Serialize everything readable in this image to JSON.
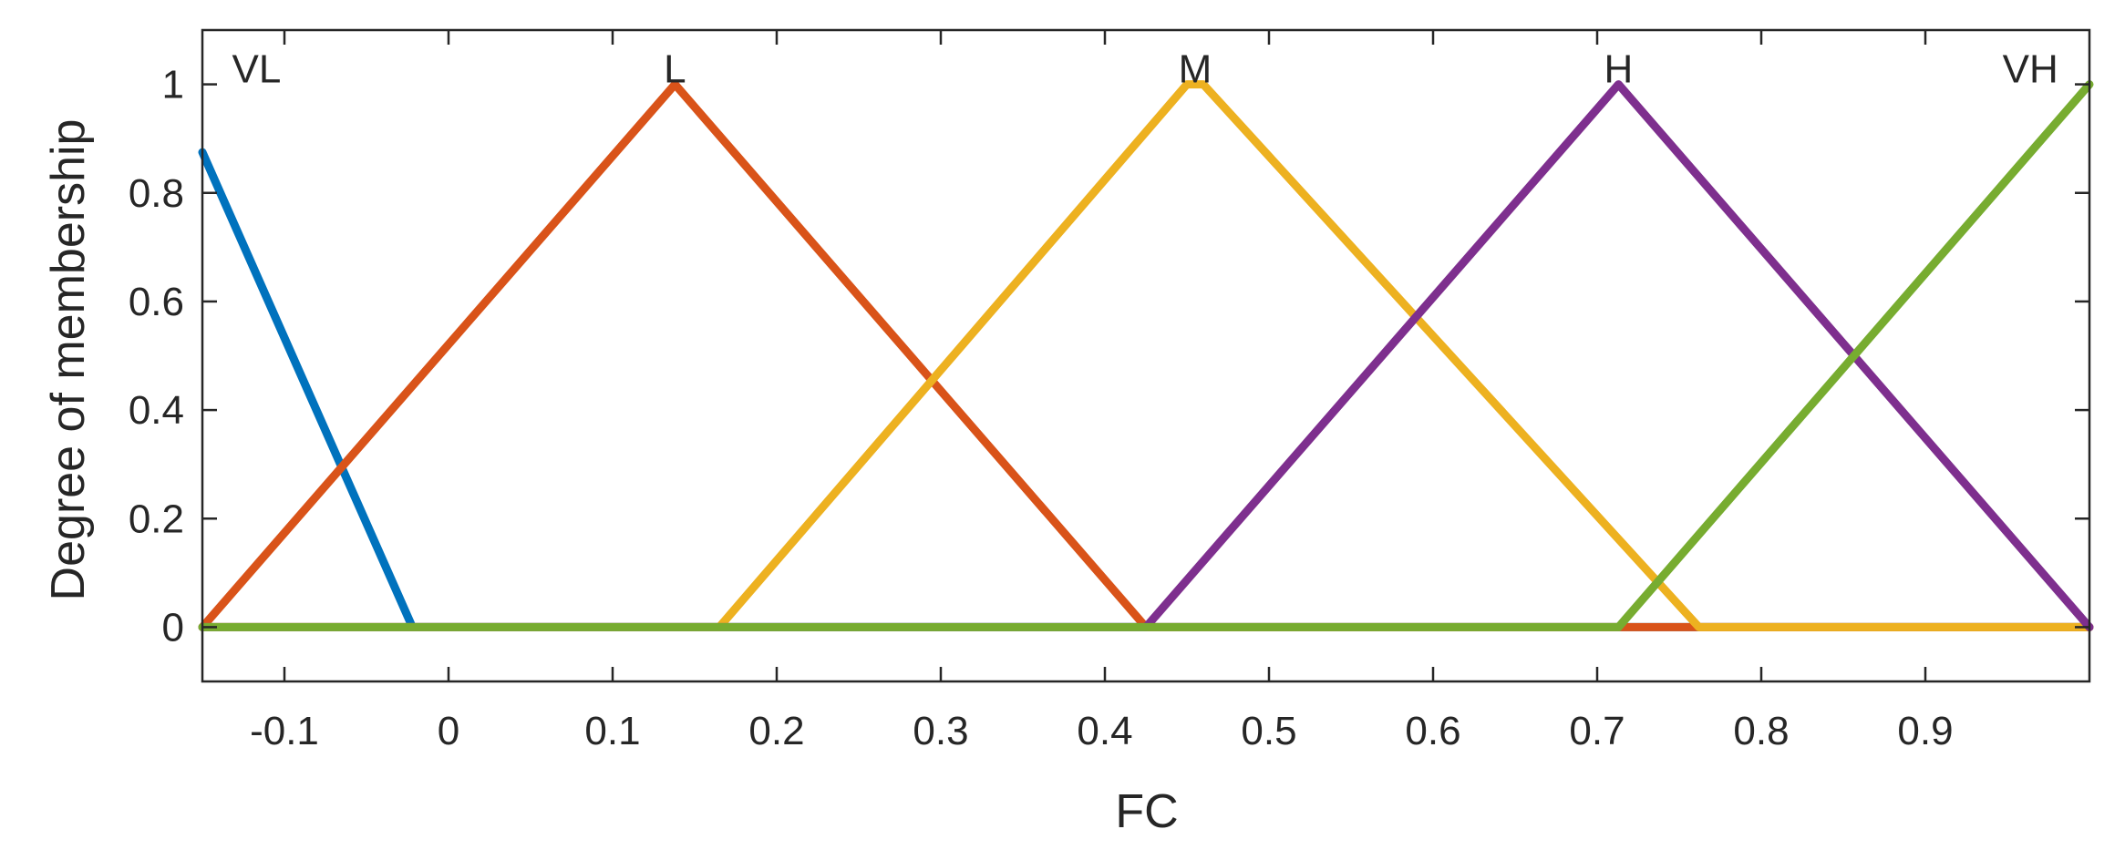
{
  "chart_data": {
    "type": "line",
    "title": "",
    "xlabel": "FC",
    "ylabel": "Degree of membership",
    "xlim": [
      -0.15,
      1.0
    ],
    "ylim": [
      -0.1,
      1.1
    ],
    "xticks": [
      -0.1,
      0,
      0.1,
      0.2,
      0.3,
      0.4,
      0.5,
      0.6,
      0.7,
      0.8,
      0.9
    ],
    "xtick_labels": [
      "-0.1",
      "0",
      "0.1",
      "0.2",
      "0.3",
      "0.4",
      "0.5",
      "0.6",
      "0.7",
      "0.8",
      "0.9"
    ],
    "yticks": [
      0,
      0.2,
      0.4,
      0.6,
      0.8,
      1
    ],
    "ytick_labels": [
      "0",
      "0.2",
      "0.4",
      "0.6",
      "0.8",
      "1"
    ],
    "grid": false,
    "series": [
      {
        "name": "VL",
        "color": "#0072BD",
        "x": [
          -0.15,
          -0.022,
          1.0
        ],
        "y": [
          0.875,
          0,
          0
        ]
      },
      {
        "name": "L",
        "color": "#D95319",
        "x": [
          -0.15,
          0.138,
          0.425,
          1.0
        ],
        "y": [
          0,
          1,
          0,
          0
        ]
      },
      {
        "name": "M",
        "color": "#EDB120",
        "x": [
          -0.15,
          0.165,
          0.45,
          0.46,
          0.762,
          1.0
        ],
        "y": [
          0,
          0,
          1,
          1,
          0,
          0
        ]
      },
      {
        "name": "H",
        "color": "#7E2F8E",
        "x": [
          -0.15,
          0.425,
          0.713,
          1.0
        ],
        "y": [
          0,
          0,
          1,
          0
        ]
      },
      {
        "name": "VH",
        "color": "#77AC30",
        "x": [
          -0.15,
          0.713,
          1.0
        ],
        "y": [
          0,
          0,
          1
        ]
      }
    ],
    "labels": [
      {
        "text": "VL",
        "x": -0.117,
        "y": 1.03
      },
      {
        "text": "L",
        "x": 0.138,
        "y": 1.03
      },
      {
        "text": "M",
        "x": 0.455,
        "y": 1.03
      },
      {
        "text": "H",
        "x": 0.713,
        "y": 1.03
      },
      {
        "text": "VH",
        "x": 0.964,
        "y": 1.03
      }
    ]
  }
}
